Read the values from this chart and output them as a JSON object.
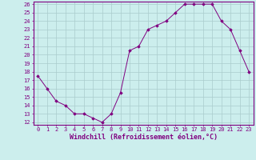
{
  "x": [
    0,
    1,
    2,
    3,
    4,
    5,
    6,
    7,
    8,
    9,
    10,
    11,
    12,
    13,
    14,
    15,
    16,
    17,
    18,
    19,
    20,
    21,
    22,
    23
  ],
  "y": [
    17.5,
    16.0,
    14.5,
    14.0,
    13.0,
    13.0,
    12.5,
    12.0,
    13.0,
    15.5,
    20.5,
    21.0,
    23.0,
    23.5,
    24.0,
    25.0,
    26.0,
    26.0,
    26.0,
    26.0,
    24.0,
    23.0,
    20.5,
    18.0
  ],
  "xlim": [
    -0.5,
    23.5
  ],
  "ylim": [
    12,
    26
  ],
  "yticks": [
    12,
    13,
    14,
    15,
    16,
    17,
    18,
    19,
    20,
    21,
    22,
    23,
    24,
    25,
    26
  ],
  "xticks": [
    0,
    1,
    2,
    3,
    4,
    5,
    6,
    7,
    8,
    9,
    10,
    11,
    12,
    13,
    14,
    15,
    16,
    17,
    18,
    19,
    20,
    21,
    22,
    23
  ],
  "xlabel": "Windchill (Refroidissement éolien,°C)",
  "line_color": "#800080",
  "marker": "D",
  "marker_size": 1.8,
  "bg_color": "#cceeed",
  "grid_color": "#aacccc",
  "xlabel_fontsize": 6,
  "tick_fontsize": 5
}
